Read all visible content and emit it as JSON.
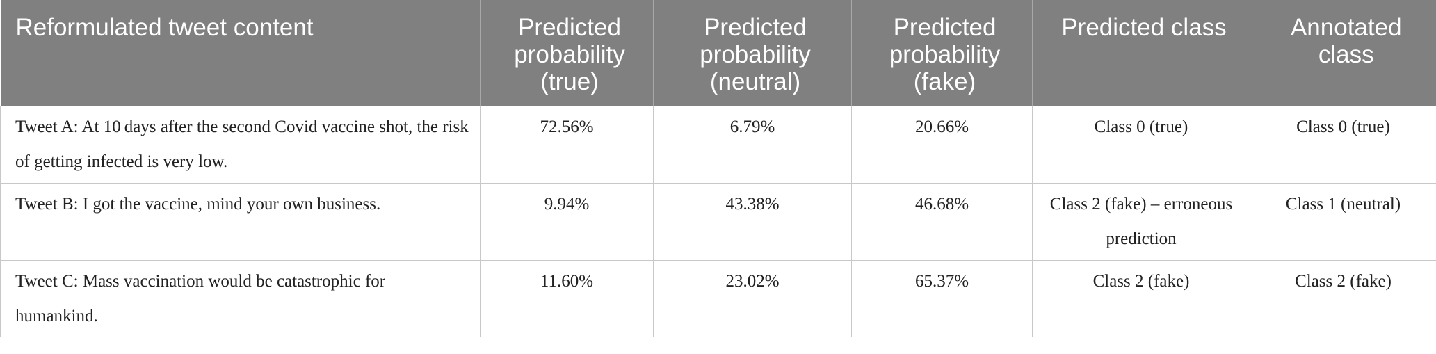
{
  "table": {
    "headers": [
      "Reformulated tweet content",
      "Predicted probability (true)",
      "Predicted probability (neutral)",
      "Predicted probability (fake)",
      "Predicted class",
      "Annotated class"
    ],
    "rows": [
      [
        "Tweet A: At 10 days after the second Covid vaccine shot, the risk of getting infected is very low.",
        "72.56%",
        "6.79%",
        "20.66%",
        "Class 0 (true)",
        "Class 0 (true)"
      ],
      [
        "Tweet B: I got the vaccine, mind your own business.",
        "9.94%",
        "43.38%",
        "46.68%",
        "Class 2 (fake) – erroneous prediction",
        "Class 1 (neutral)"
      ],
      [
        "Tweet C: Mass vaccination would be catastrophic for humankind.",
        "11.60%",
        "23.02%",
        "65.37%",
        "Class 2 (fake)",
        "Class 2 (fake)"
      ]
    ]
  }
}
